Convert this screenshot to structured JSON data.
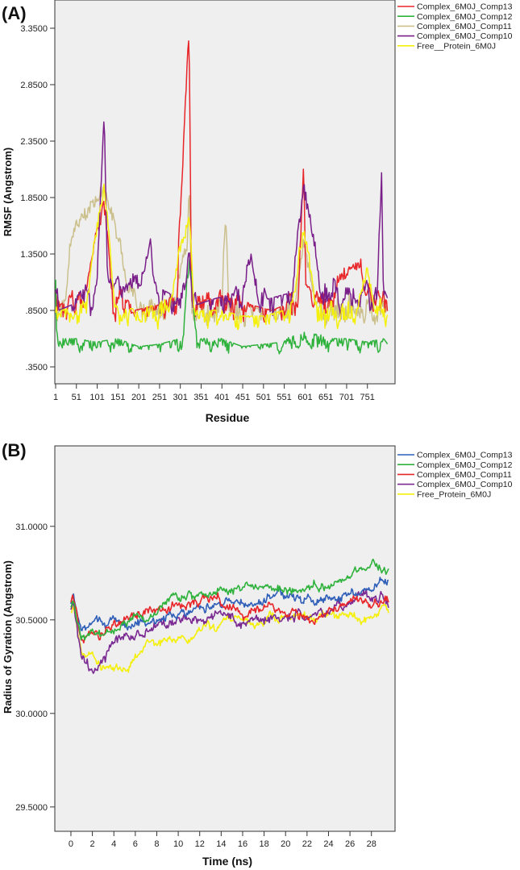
{
  "chart_data": [
    {
      "panel_label": "(A)",
      "type": "line",
      "title": "",
      "xlabel": "Residue",
      "ylabel": "RMSF (Angstrom)",
      "xlim": [
        1,
        800
      ],
      "ylim": [
        0.2,
        3.6
      ],
      "x_ticks": [
        "1",
        "51",
        "101",
        "151",
        "201",
        "251",
        "301",
        "351",
        "401",
        "451",
        "501",
        "551",
        "601",
        "651",
        "701",
        "751"
      ],
      "x_tick_values": [
        1,
        51,
        101,
        151,
        201,
        251,
        301,
        351,
        401,
        451,
        501,
        551,
        601,
        651,
        701,
        751
      ],
      "y_ticks": [
        ".3500",
        ".8500",
        "1.3500",
        "1.8500",
        "2.3500",
        "2.8500",
        "3.3500"
      ],
      "y_tick_values": [
        0.35,
        0.85,
        1.35,
        1.85,
        2.35,
        2.85,
        3.35
      ],
      "legend_position": "top-right outside",
      "legend": [
        "Complex_6M0J_Comp13",
        "Complex_6M0J_Comp12",
        "Complex_6M0J_Comp11",
        "Complex_6M0J_Comp10",
        "Free__Protein_6M0J"
      ],
      "draw_order": [
        2,
        0,
        1,
        3,
        4
      ],
      "series": [
        {
          "name": "Complex_6M0J_Comp13",
          "color": "#e8262a",
          "base": 0.82,
          "amp": 0.2,
          "noise": 0.1,
          "x": [
            1,
            5,
            12,
            30,
            52,
            80,
            118,
            140,
            190,
            250,
            290,
            322,
            328,
            360,
            420,
            470,
            520,
            555,
            585,
            598,
            602,
            650,
            690,
            735,
            760,
            790,
            800
          ],
          "y": [
            1.2,
            0.95,
            0.85,
            0.9,
            1.05,
            1.3,
            1.85,
            1.1,
            0.8,
            0.85,
            0.95,
            3.4,
            1.0,
            0.95,
            1.0,
            0.85,
            0.8,
            0.85,
            1.15,
            2.2,
            1.3,
            1.05,
            1.35,
            1.4,
            1.0,
            1.2,
            0.75
          ]
        },
        {
          "name": "Complex_6M0J_Comp12",
          "color": "#2eb23c",
          "base": 0.52,
          "amp": 0.1,
          "noise": 0.06,
          "x": [
            1,
            5,
            12,
            50,
            100,
            150,
            200,
            250,
            300,
            322,
            350,
            400,
            450,
            500,
            550,
            600,
            650,
            700,
            750,
            790,
            800
          ],
          "y": [
            1.2,
            0.65,
            0.55,
            0.55,
            0.52,
            0.55,
            0.48,
            0.5,
            0.55,
            1.35,
            0.55,
            0.55,
            0.48,
            0.5,
            0.52,
            0.7,
            0.55,
            0.55,
            0.52,
            0.55,
            0.5
          ]
        },
        {
          "name": "Complex_6M0J_Comp11",
          "color": "#cbc08c",
          "base": 0.78,
          "amp": 0.14,
          "noise": 0.09,
          "x": [
            1,
            12,
            40,
            118,
            170,
            250,
            318,
            322,
            330,
            350,
            400,
            410,
            420,
            500,
            555,
            598,
            640,
            700,
            790,
            800
          ],
          "y": [
            1.1,
            0.8,
            1.6,
            2.0,
            1.3,
            0.85,
            1.5,
            2.0,
            0.95,
            0.9,
            1.1,
            1.75,
            0.9,
            0.8,
            0.85,
            1.5,
            1.0,
            1.0,
            1.0,
            0.8
          ]
        },
        {
          "name": "Complex_6M0J_Comp10",
          "color": "#7a1f8a",
          "base": 0.85,
          "amp": 0.26,
          "noise": 0.1,
          "x": [
            1,
            8,
            40,
            100,
            118,
            125,
            145,
            200,
            230,
            250,
            300,
            322,
            340,
            380,
            430,
            470,
            510,
            560,
            598,
            640,
            690,
            720,
            740,
            760,
            775,
            785,
            790,
            800
          ],
          "y": [
            1.25,
            0.8,
            0.85,
            1.2,
            2.65,
            1.35,
            1.25,
            1.3,
            1.5,
            1.0,
            0.9,
            1.5,
            0.85,
            0.9,
            0.95,
            1.45,
            0.9,
            0.95,
            2.0,
            1.2,
            1.0,
            1.0,
            1.2,
            0.9,
            1.2,
            2.1,
            1.0,
            0.9
          ]
        },
        {
          "name": "Free__Protein_6M0J",
          "color": "#f4f00c",
          "base": 0.75,
          "amp": 0.14,
          "noise": 0.09,
          "x": [
            1,
            12,
            60,
            118,
            150,
            250,
            322,
            340,
            400,
            450,
            500,
            550,
            598,
            640,
            700,
            750,
            790,
            800
          ],
          "y": [
            1.15,
            0.8,
            0.85,
            2.0,
            0.8,
            0.85,
            1.7,
            0.8,
            0.8,
            0.75,
            0.75,
            0.8,
            1.6,
            0.9,
            0.85,
            1.35,
            0.85,
            0.75
          ]
        }
      ]
    },
    {
      "panel_label": "(B)",
      "type": "line",
      "title": "",
      "xlabel": "Time (ns)",
      "ylabel": "Radius of Gyration (Angstrom)",
      "xlim": [
        -1.5,
        30.2
      ],
      "ylim": [
        29.37,
        31.43
      ],
      "x_ticks": [
        "0",
        "2",
        "4",
        "6",
        "8",
        "10",
        "12",
        "14",
        "16",
        "18",
        "20",
        "22",
        "24",
        "26",
        "28"
      ],
      "x_tick_values": [
        0,
        2,
        4,
        6,
        8,
        10,
        12,
        14,
        16,
        18,
        20,
        22,
        24,
        26,
        28
      ],
      "y_ticks": [
        "29.5000",
        "30.0000",
        "30.5000",
        "31.0000"
      ],
      "y_tick_values": [
        29.5,
        30.0,
        30.5,
        31.0
      ],
      "legend_position": "top-right outside",
      "legend": [
        "Complex_6M0J_Comp13",
        "Complex_6M0J_Comp12",
        "Complex_6M0J_Comp11",
        "Complex_6M0J_Comp10",
        "Free_Protein_6M0J"
      ],
      "draw_order": [
        4,
        3,
        0,
        2,
        1
      ],
      "series": [
        {
          "name": "Complex_6M0J_Comp13",
          "color": "#2f5fb8",
          "noise": 0.03,
          "x": [
            0,
            0.2,
            1,
            3,
            5,
            8,
            12,
            16,
            20,
            24,
            28,
            29.6
          ],
          "y": [
            30.6,
            30.65,
            30.45,
            30.45,
            30.47,
            30.52,
            30.56,
            30.6,
            30.62,
            30.62,
            30.67,
            30.72
          ]
        },
        {
          "name": "Complex_6M0J_Comp12",
          "color": "#2eb23c",
          "noise": 0.03,
          "x": [
            0,
            0.2,
            1,
            3,
            6,
            9,
            12,
            15,
            18,
            22,
            25,
            27,
            28,
            29.6
          ],
          "y": [
            30.58,
            30.62,
            30.42,
            30.43,
            30.5,
            30.6,
            30.63,
            30.68,
            30.66,
            30.68,
            30.7,
            30.78,
            30.78,
            30.74
          ]
        },
        {
          "name": "Complex_6M0J_Comp11",
          "color": "#e8262a",
          "noise": 0.03,
          "x": [
            0,
            0.2,
            1,
            2,
            4,
            7,
            10,
            13,
            16,
            20,
            23,
            26,
            29.6
          ],
          "y": [
            30.58,
            30.62,
            30.38,
            30.42,
            30.47,
            30.55,
            30.58,
            30.6,
            30.55,
            30.57,
            30.5,
            30.62,
            30.63
          ]
        },
        {
          "name": "Complex_6M0J_Comp10",
          "color": "#7a2a92",
          "noise": 0.035,
          "x": [
            0,
            0.2,
            1,
            2,
            3,
            5,
            8,
            11,
            14,
            17,
            20,
            24,
            26,
            28,
            29.6
          ],
          "y": [
            30.55,
            30.6,
            30.25,
            30.18,
            30.3,
            30.4,
            30.45,
            30.5,
            30.52,
            30.5,
            30.52,
            30.55,
            30.58,
            30.6,
            30.6
          ]
        },
        {
          "name": "Free_Protein_6M0J",
          "color": "#f4f00c",
          "noise": 0.03,
          "x": [
            0,
            0.2,
            1,
            3,
            5,
            7,
            9,
            12,
            16,
            20,
            24,
            27,
            29.6
          ],
          "y": [
            30.55,
            30.6,
            30.33,
            30.25,
            30.25,
            30.35,
            30.38,
            30.45,
            30.48,
            30.52,
            30.52,
            30.52,
            30.57
          ]
        }
      ]
    }
  ]
}
